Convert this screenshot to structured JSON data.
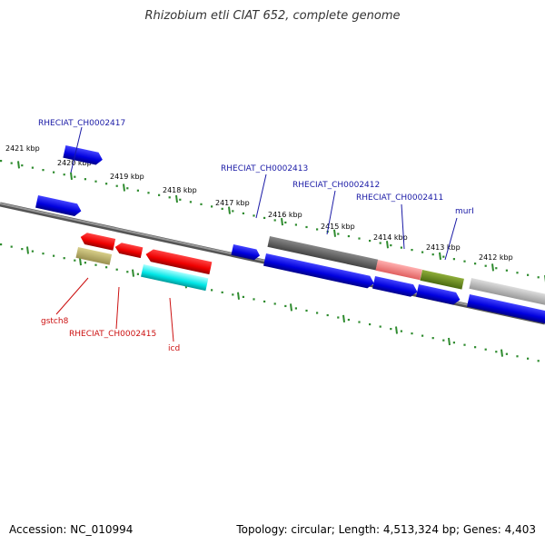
{
  "title": "Rhizobium etli CIAT 652, complete genome",
  "footer": {
    "accession": "Accession: NC_010994",
    "topology": "Topology: circular; Length: 4,513,324 bp; Genes: 4,403"
  },
  "colors": {
    "backbone": "#888888",
    "tick_green": "#2e8b2e",
    "forward_gene": "#1010e6",
    "reverse_gene": "#e60000",
    "label_blue": "#1a1aa6",
    "label_red": "#cc1111"
  },
  "scale_labels": [
    "2421 kbp",
    "2420 kbp",
    "2419 kbp",
    "2418 kbp",
    "2417 kbp",
    "2416 kbp",
    "2415 kbp",
    "2414 kbp",
    "2413 kbp",
    "2412 kbp"
  ],
  "gene_labels_forward": [
    "RHECIAT_CH0002417",
    "RHECIAT_CH0002413",
    "RHECIAT_CH0002412",
    "RHECIAT_CH0002411",
    "murI"
  ],
  "gene_labels_reverse": [
    "gstch8",
    "RHECIAT_CH0002415",
    "icd"
  ]
}
